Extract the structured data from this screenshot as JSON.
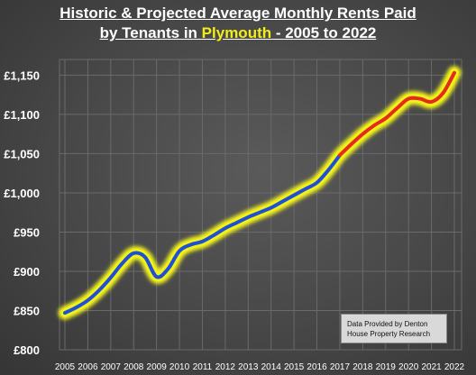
{
  "title": {
    "line1": "Historic & Projected Average Monthly Rents Paid",
    "line2_prefix": "by Tenants in ",
    "line2_highlight": "Plymouth",
    "line2_suffix": " - 2005 to 2022"
  },
  "credit_box": "Data Provided by Denton House Property Research",
  "colors": {
    "historic_line": "#1f4fd6",
    "projected_line": "#e42b1c",
    "glow": "#f2f21a",
    "highlight_text": "#f2ee1c",
    "gridline": "#6a6a6a"
  },
  "chart_data": {
    "type": "line",
    "x": [
      2005,
      2005.5,
      2006,
      2006.5,
      2007,
      2007.5,
      2008,
      2008.5,
      2009,
      2009.5,
      2010,
      2010.5,
      2011,
      2011.5,
      2012,
      2012.5,
      2013,
      2013.5,
      2014,
      2014.5,
      2015,
      2015.5,
      2016,
      2016.5,
      2017,
      2017.5,
      2018,
      2018.5,
      2019,
      2019.5,
      2020,
      2020.5,
      2021,
      2021.5,
      2022
    ],
    "y": [
      847,
      854,
      863,
      876,
      892,
      910,
      923,
      918,
      893,
      903,
      926,
      934,
      938,
      946,
      955,
      962,
      969,
      975,
      981,
      989,
      997,
      1005,
      1013,
      1029,
      1048,
      1062,
      1075,
      1086,
      1095,
      1108,
      1120,
      1120,
      1116,
      1127,
      1153
    ],
    "series": [
      {
        "name": "",
        "from_year": 2005,
        "to_year": 2017,
        "color": "#1f4fd6"
      },
      {
        "name": "",
        "from_year": 2017,
        "to_year": 2022,
        "color": "#e42b1c"
      }
    ],
    "xticks": [
      "2005",
      "2006",
      "2007",
      "2008",
      "2009",
      "2010",
      "2011",
      "2012",
      "2013",
      "2014",
      "2015",
      "2016",
      "2017",
      "2018",
      "2019",
      "2020",
      "2021",
      "2022"
    ],
    "yticks": [
      "£800",
      "£850",
      "£900",
      "£950",
      "£1,000",
      "£1,050",
      "£1,100",
      "£1,150"
    ],
    "ylim": [
      800,
      1170
    ],
    "xlim": [
      2005,
      2022
    ],
    "grid": true,
    "xlabel": "",
    "ylabel": ""
  }
}
